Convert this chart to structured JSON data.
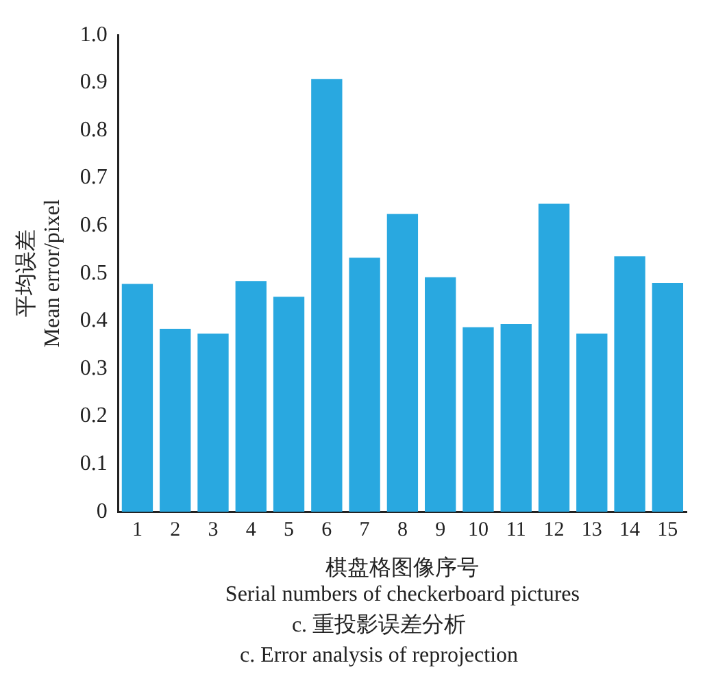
{
  "chart_data": {
    "type": "bar",
    "xlabel": "棋盘格图像序号\nSerial numbers of checkerboard pictures",
    "ylabel": "平均误差\nMean error/pixel",
    "annotations": [
      "c. 重投影误差分析",
      "c. Error analysis of reprojection"
    ],
    "categories": [
      "1",
      "2",
      "3",
      "4",
      "5",
      "6",
      "7",
      "8",
      "9",
      "10",
      "11",
      "12",
      "13",
      "14",
      "15"
    ],
    "values": [
      0.478,
      0.384,
      0.374,
      0.484,
      0.451,
      0.908,
      0.533,
      0.625,
      0.492,
      0.387,
      0.394,
      0.646,
      0.374,
      0.536,
      0.48
    ],
    "color": "#29a8e0",
    "ylim": [
      0,
      1.0
    ],
    "yticks": [
      0,
      {
        "value": 0.1,
        "label": "0.1"
      },
      {
        "value": 0.2,
        "label": "0.2"
      },
      {
        "value": 0.3,
        "label": "0.3"
      },
      {
        "value": 0.4,
        "label": "0.4"
      },
      {
        "value": 0.5,
        "label": "0.5"
      },
      {
        "value": 0.6,
        "label": "0.6"
      },
      {
        "value": 0.7,
        "label": "0.7"
      },
      {
        "value": 0.8,
        "label": "0.8"
      },
      {
        "value": 0.9,
        "label": "0.9"
      },
      {
        "value": 1.0,
        "label": "1.0"
      }
    ],
    "grid": false,
    "legend": false
  }
}
